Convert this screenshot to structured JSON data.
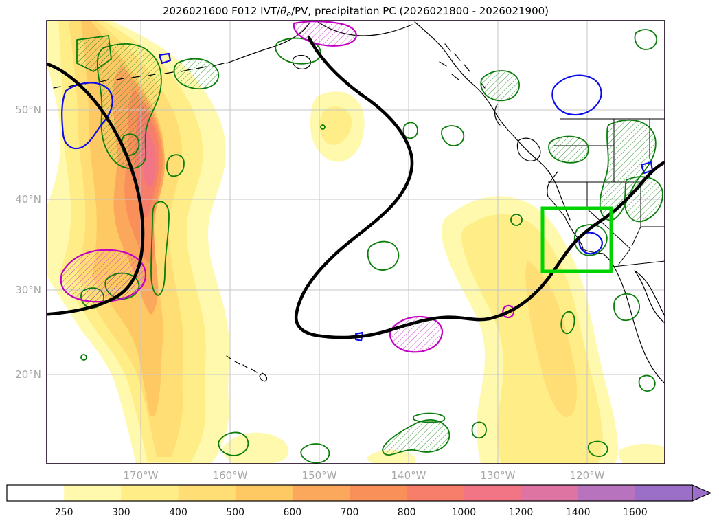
{
  "chart_data": {
    "type": "heatmap",
    "subtype": "filled-contour-weather-map",
    "title": "2026021600 F012 IVT/θe/PV, precipitation PC (2026021800 - 2026021900)",
    "title_parts": {
      "t1": "2026021600 F012 IVT/",
      "theta": "θ",
      "sub": "e",
      "t2": "/PV, precipitation PC (2026021800 - 2026021900)"
    },
    "x_tick_labels": [
      "170°W",
      "160°W",
      "150°W",
      "140°W",
      "130°W",
      "120°W"
    ],
    "y_tick_labels": [
      "50°N",
      "40°N",
      "30°N",
      "20°N"
    ],
    "x_axis_range_deg_west": [
      180.5,
      111.3
    ],
    "y_axis_range_deg_north": [
      10.5,
      59.8
    ],
    "grid": true,
    "colorbar": {
      "orientation": "horizontal",
      "levels": [
        "250",
        "300",
        "400",
        "500",
        "600",
        "700",
        "800",
        "1000",
        "1200",
        "1400",
        "1600"
      ],
      "segment_colors": [
        "#ffffff",
        "#fff9ad",
        "#ffee87",
        "#ffde75",
        "#fec963",
        "#fba85c",
        "#f9905a",
        "#f67e6b",
        "#f17585",
        "#dd74a2",
        "#b873be",
        "#9b6ec8"
      ],
      "arrow_color": "#9b6ec8",
      "extend": "max"
    },
    "overlays": [
      {
        "name": "ivt-filled-contours",
        "style": "filled",
        "units_implied": "IVT magnitude"
      },
      {
        "name": "pv-theta-e-contour",
        "color": "#000000",
        "style": "thick-line"
      },
      {
        "name": "positive-anomaly-contours",
        "color": "#0a7d0a",
        "style": "hatched-outline"
      },
      {
        "name": "blue-contours",
        "color": "#0b0bee",
        "style": "outline"
      },
      {
        "name": "magenta-contours",
        "color": "#c400c4",
        "style": "hatched-outline"
      },
      {
        "name": "highlight-box",
        "color": "#00d400",
        "approx_lon_west": [
          125,
          117.3
        ],
        "approx_lat_north": [
          32,
          39
        ]
      }
    ],
    "notable_features": {
      "main_ivt_plume_core_value": "800-1000",
      "main_ivt_plume_location": "near 167W from 15N to 57N",
      "secondary_plume_location": "near 125W-118W reaching California coast, value 250-500"
    }
  }
}
